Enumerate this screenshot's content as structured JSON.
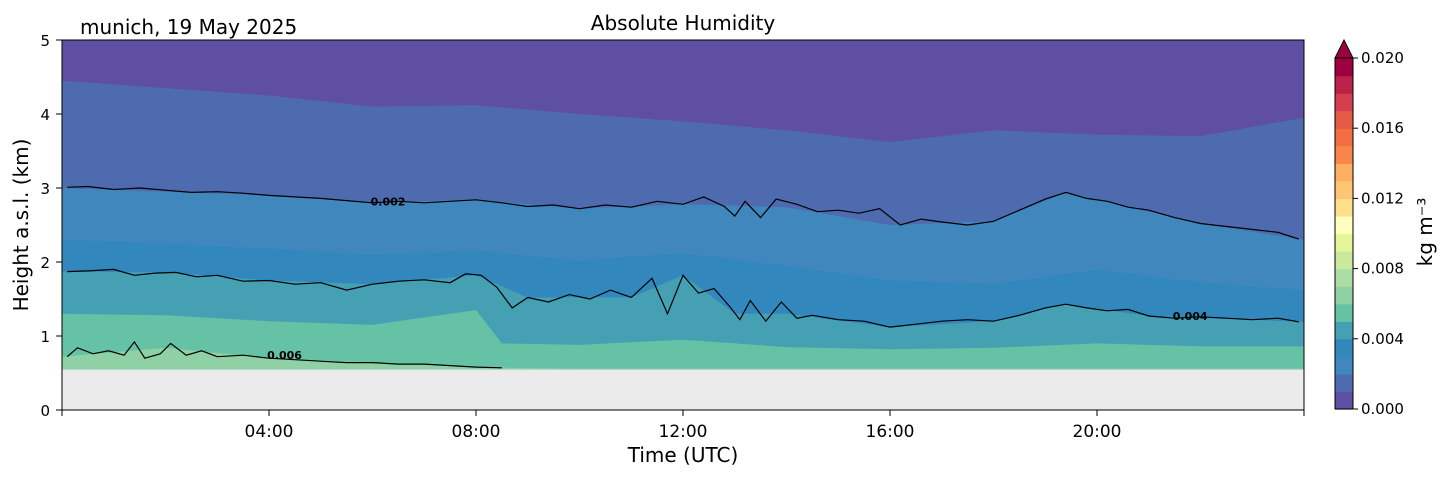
{
  "chart_data": {
    "type": "heatmap",
    "title": "Absolute Humidity",
    "subtitle": "munich, 19 May 2025",
    "xlabel": "Time (UTC)",
    "ylabel": "Height a.s.l. (km)",
    "xlim": [
      0,
      24
    ],
    "ylim": [
      0,
      5
    ],
    "xticks": [
      {
        "value": 4,
        "label": "04:00"
      },
      {
        "value": 8,
        "label": "08:00"
      },
      {
        "value": 12,
        "label": "12:00"
      },
      {
        "value": 16,
        "label": "16:00"
      },
      {
        "value": 20,
        "label": "20:00"
      }
    ],
    "yticks": [
      {
        "value": 0,
        "label": "0"
      },
      {
        "value": 1,
        "label": "1"
      },
      {
        "value": 2,
        "label": "2"
      },
      {
        "value": 3,
        "label": "3"
      },
      {
        "value": 4,
        "label": "4"
      },
      {
        "value": 5,
        "label": "5"
      }
    ],
    "data_bottom_km": 0.55,
    "colorbar": {
      "label": "kg m⁻³",
      "min": 0.0,
      "max": 0.02,
      "ticks": [
        "0.000",
        "0.004",
        "0.008",
        "0.012",
        "0.016",
        "0.020"
      ],
      "extend": "max",
      "colormap": "Spectral_r",
      "colors": [
        "#5e4fa2",
        "#4f6bb0",
        "#3f87bd",
        "#3288bd",
        "#46a0b4",
        "#66c2a5",
        "#8fd1a4",
        "#abdda4",
        "#cbe99e",
        "#e6f598",
        "#ffffbf",
        "#fee08b",
        "#fdc574",
        "#fdae61",
        "#f9844c",
        "#f46d43",
        "#e65a48",
        "#d53e4f",
        "#bb2149",
        "#9e0142"
      ]
    },
    "contours": [
      {
        "level_label": "0.002",
        "label_at": [
          6.3,
          2.82
        ],
        "points": [
          [
            0.1,
            3.01
          ],
          [
            0.5,
            3.02
          ],
          [
            1.0,
            2.98
          ],
          [
            1.5,
            3.0
          ],
          [
            2.0,
            2.97
          ],
          [
            2.5,
            2.94
          ],
          [
            3.0,
            2.95
          ],
          [
            3.5,
            2.93
          ],
          [
            4.0,
            2.9
          ],
          [
            4.5,
            2.88
          ],
          [
            5.0,
            2.86
          ],
          [
            5.5,
            2.83
          ],
          [
            6.0,
            2.8
          ],
          [
            6.5,
            2.82
          ],
          [
            7.0,
            2.8
          ],
          [
            7.5,
            2.82
          ],
          [
            8.0,
            2.84
          ],
          [
            8.5,
            2.8
          ],
          [
            9.0,
            2.75
          ],
          [
            9.5,
            2.77
          ],
          [
            10.0,
            2.72
          ],
          [
            10.5,
            2.77
          ],
          [
            11.0,
            2.74
          ],
          [
            11.5,
            2.82
          ],
          [
            12.0,
            2.78
          ],
          [
            12.4,
            2.88
          ],
          [
            12.8,
            2.75
          ],
          [
            13.0,
            2.62
          ],
          [
            13.2,
            2.82
          ],
          [
            13.5,
            2.6
          ],
          [
            13.8,
            2.85
          ],
          [
            14.2,
            2.78
          ],
          [
            14.6,
            2.68
          ],
          [
            15.0,
            2.7
          ],
          [
            15.4,
            2.66
          ],
          [
            15.8,
            2.72
          ],
          [
            16.2,
            2.5
          ],
          [
            16.6,
            2.58
          ],
          [
            17.0,
            2.54
          ],
          [
            17.5,
            2.5
          ],
          [
            18.0,
            2.55
          ],
          [
            18.5,
            2.7
          ],
          [
            19.0,
            2.85
          ],
          [
            19.4,
            2.94
          ],
          [
            19.8,
            2.86
          ],
          [
            20.2,
            2.82
          ],
          [
            20.6,
            2.74
          ],
          [
            21.0,
            2.7
          ],
          [
            21.5,
            2.6
          ],
          [
            22.0,
            2.52
          ],
          [
            22.5,
            2.48
          ],
          [
            23.0,
            2.44
          ],
          [
            23.5,
            2.4
          ],
          [
            23.9,
            2.31
          ]
        ]
      },
      {
        "level_label": "0.004",
        "label_at": [
          21.8,
          1.27
        ],
        "points": [
          [
            0.1,
            1.87
          ],
          [
            0.5,
            1.88
          ],
          [
            1.0,
            1.9
          ],
          [
            1.4,
            1.82
          ],
          [
            1.8,
            1.85
          ],
          [
            2.2,
            1.86
          ],
          [
            2.6,
            1.8
          ],
          [
            3.0,
            1.82
          ],
          [
            3.5,
            1.74
          ],
          [
            4.0,
            1.75
          ],
          [
            4.5,
            1.7
          ],
          [
            5.0,
            1.72
          ],
          [
            5.5,
            1.62
          ],
          [
            6.0,
            1.7
          ],
          [
            6.5,
            1.74
          ],
          [
            7.0,
            1.76
          ],
          [
            7.5,
            1.72
          ],
          [
            7.8,
            1.84
          ],
          [
            8.1,
            1.82
          ],
          [
            8.4,
            1.66
          ],
          [
            8.7,
            1.38
          ],
          [
            9.0,
            1.52
          ],
          [
            9.4,
            1.46
          ],
          [
            9.8,
            1.56
          ],
          [
            10.2,
            1.5
          ],
          [
            10.6,
            1.62
          ],
          [
            11.0,
            1.52
          ],
          [
            11.4,
            1.78
          ],
          [
            11.7,
            1.3
          ],
          [
            12.0,
            1.82
          ],
          [
            12.3,
            1.58
          ],
          [
            12.6,
            1.64
          ],
          [
            12.9,
            1.4
          ],
          [
            13.1,
            1.22
          ],
          [
            13.3,
            1.48
          ],
          [
            13.6,
            1.2
          ],
          [
            13.9,
            1.46
          ],
          [
            14.2,
            1.24
          ],
          [
            14.5,
            1.28
          ],
          [
            15.0,
            1.22
          ],
          [
            15.5,
            1.2
          ],
          [
            16.0,
            1.12
          ],
          [
            16.5,
            1.16
          ],
          [
            17.0,
            1.2
          ],
          [
            17.5,
            1.22
          ],
          [
            18.0,
            1.2
          ],
          [
            18.5,
            1.28
          ],
          [
            19.0,
            1.38
          ],
          [
            19.4,
            1.43
          ],
          [
            19.8,
            1.38
          ],
          [
            20.2,
            1.34
          ],
          [
            20.6,
            1.36
          ],
          [
            21.0,
            1.27
          ],
          [
            21.5,
            1.24
          ],
          [
            22.0,
            1.26
          ],
          [
            22.5,
            1.24
          ],
          [
            23.0,
            1.22
          ],
          [
            23.5,
            1.24
          ],
          [
            23.9,
            1.19
          ]
        ]
      },
      {
        "level_label": "0.006",
        "label_at": [
          4.3,
          0.74
        ],
        "points": [
          [
            0.1,
            0.72
          ],
          [
            0.3,
            0.84
          ],
          [
            0.6,
            0.76
          ],
          [
            0.9,
            0.8
          ],
          [
            1.2,
            0.74
          ],
          [
            1.4,
            0.92
          ],
          [
            1.6,
            0.7
          ],
          [
            1.9,
            0.76
          ],
          [
            2.1,
            0.9
          ],
          [
            2.4,
            0.74
          ],
          [
            2.7,
            0.8
          ],
          [
            3.0,
            0.72
          ],
          [
            3.5,
            0.74
          ],
          [
            4.0,
            0.7
          ],
          [
            4.5,
            0.68
          ],
          [
            5.0,
            0.66
          ],
          [
            5.5,
            0.64
          ],
          [
            6.0,
            0.64
          ],
          [
            6.5,
            0.62
          ],
          [
            7.0,
            0.62
          ],
          [
            7.5,
            0.6
          ],
          [
            8.0,
            0.58
          ],
          [
            8.5,
            0.57
          ]
        ]
      }
    ],
    "bands": [
      {
        "level": 0.0,
        "top": [
          [
            0,
            5
          ],
          [
            24,
            5
          ]
        ]
      },
      {
        "level": 0.001,
        "top": [
          [
            0,
            4.45
          ],
          [
            2,
            4.35
          ],
          [
            4,
            4.25
          ],
          [
            6,
            4.1
          ],
          [
            8,
            4.12
          ],
          [
            10,
            4.0
          ],
          [
            12,
            3.9
          ],
          [
            14,
            3.78
          ],
          [
            16,
            3.62
          ],
          [
            18,
            3.78
          ],
          [
            20,
            3.72
          ],
          [
            22,
            3.7
          ],
          [
            24,
            3.95
          ]
        ]
      },
      {
        "level": 0.0015,
        "top": [
          [
            0,
            3.55
          ],
          [
            2,
            3.45
          ],
          [
            4,
            3.35
          ],
          [
            6,
            3.32
          ],
          [
            8,
            3.4
          ],
          [
            10,
            3.28
          ],
          [
            12,
            3.18
          ],
          [
            14,
            3.12
          ],
          [
            16,
            3.02
          ],
          [
            18,
            3.18
          ],
          [
            20,
            3.28
          ],
          [
            22,
            3.1
          ],
          [
            24,
            3.05
          ]
        ]
      },
      {
        "level": 0.002,
        "top": [
          [
            0,
            3.0
          ],
          [
            2,
            2.95
          ],
          [
            4,
            2.9
          ],
          [
            6,
            2.8
          ],
          [
            8,
            2.84
          ],
          [
            10,
            2.72
          ],
          [
            12,
            2.78
          ],
          [
            14,
            2.74
          ],
          [
            16,
            2.5
          ],
          [
            18,
            2.55
          ],
          [
            19.4,
            2.94
          ],
          [
            22,
            2.52
          ],
          [
            24,
            2.3
          ]
        ]
      },
      {
        "level": 0.0025,
        "top": [
          [
            0,
            2.62
          ],
          [
            2,
            2.58
          ],
          [
            4,
            2.52
          ],
          [
            6,
            2.45
          ],
          [
            8,
            2.5
          ],
          [
            10,
            2.38
          ],
          [
            12,
            2.42
          ],
          [
            14,
            2.3
          ],
          [
            16,
            2.1
          ],
          [
            18,
            2.05
          ],
          [
            20,
            2.3
          ],
          [
            22,
            2.1
          ],
          [
            24,
            2.02
          ]
        ]
      },
      {
        "level": 0.003,
        "top": [
          [
            0,
            2.3
          ],
          [
            2,
            2.25
          ],
          [
            4,
            2.18
          ],
          [
            6,
            2.1
          ],
          [
            8,
            2.15
          ],
          [
            10,
            2.02
          ],
          [
            12,
            2.12
          ],
          [
            14,
            1.95
          ],
          [
            16,
            1.75
          ],
          [
            18,
            1.7
          ],
          [
            20,
            1.9
          ],
          [
            22,
            1.72
          ],
          [
            24,
            1.62
          ]
        ]
      },
      {
        "level": 0.0035,
        "top": [
          [
            0,
            2.08
          ],
          [
            2,
            2.05
          ],
          [
            4,
            2.0
          ],
          [
            6,
            1.92
          ],
          [
            8,
            2.0
          ],
          [
            10,
            1.78
          ],
          [
            12,
            1.95
          ],
          [
            14,
            1.62
          ],
          [
            16,
            1.45
          ],
          [
            18,
            1.42
          ],
          [
            20,
            1.62
          ],
          [
            22,
            1.45
          ],
          [
            24,
            1.4
          ]
        ]
      },
      {
        "level": 0.004,
        "top": [
          [
            0,
            1.87
          ],
          [
            2,
            1.86
          ],
          [
            4,
            1.75
          ],
          [
            6,
            1.7
          ],
          [
            8,
            1.82
          ],
          [
            9,
            1.52
          ],
          [
            11,
            1.52
          ],
          [
            12,
            1.82
          ],
          [
            13,
            1.3
          ],
          [
            14,
            1.3
          ],
          [
            16,
            1.12
          ],
          [
            18,
            1.2
          ],
          [
            19.4,
            1.43
          ],
          [
            21,
            1.27
          ],
          [
            24,
            1.19
          ]
        ]
      },
      {
        "level": 0.0045,
        "top": [
          [
            0,
            1.6
          ],
          [
            2,
            1.55
          ],
          [
            4,
            1.48
          ],
          [
            6,
            1.45
          ],
          [
            8,
            1.6
          ],
          [
            8.5,
            1.1
          ],
          [
            10,
            1.08
          ],
          [
            12,
            1.25
          ],
          [
            14,
            1.0
          ],
          [
            16,
            0.95
          ],
          [
            18,
            0.98
          ],
          [
            20,
            1.08
          ],
          [
            22,
            1.02
          ],
          [
            24,
            1.0
          ]
        ]
      },
      {
        "level": 0.005,
        "top": [
          [
            0,
            1.3
          ],
          [
            2,
            1.28
          ],
          [
            4,
            1.2
          ],
          [
            6,
            1.15
          ],
          [
            8,
            1.35
          ],
          [
            8.5,
            0.9
          ],
          [
            10,
            0.88
          ],
          [
            12,
            0.95
          ],
          [
            14,
            0.85
          ],
          [
            16,
            0.82
          ],
          [
            18,
            0.84
          ],
          [
            20,
            0.9
          ],
          [
            22,
            0.86
          ],
          [
            24,
            0.86
          ]
        ]
      },
      {
        "level": 0.0055,
        "top": [
          [
            0,
            1.05
          ],
          [
            2,
            1.02
          ],
          [
            4,
            0.98
          ],
          [
            6,
            0.92
          ],
          [
            8,
            1.05
          ],
          [
            8.5,
            0.72
          ],
          [
            10,
            0.7
          ],
          [
            12,
            0.74
          ],
          [
            14,
            0.7
          ],
          [
            16,
            0.68
          ],
          [
            18,
            0.7
          ],
          [
            20,
            0.74
          ],
          [
            22,
            0.72
          ],
          [
            24,
            0.72
          ]
        ]
      },
      {
        "level": 0.006,
        "top": [
          [
            0,
            0.72
          ],
          [
            2,
            0.84
          ],
          [
            4,
            0.7
          ],
          [
            6,
            0.64
          ],
          [
            8,
            0.58
          ],
          [
            8.5,
            0.57
          ],
          [
            10,
            0.56
          ],
          [
            24,
            0.56
          ]
        ]
      }
    ]
  }
}
